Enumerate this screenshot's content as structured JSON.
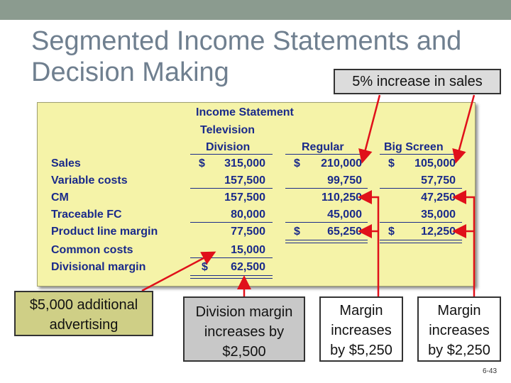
{
  "title_line1": "Segmented Income Statements and",
  "title_line2": "Decision Making",
  "callout_top": "5% increase in sales",
  "table": {
    "heading": "Income Statement",
    "col_division_1": "Television",
    "col_division_2": "Division",
    "col_regular": "Regular",
    "col_bigscreen": "Big Screen",
    "rows": [
      {
        "label": "Sales",
        "division": "315,000",
        "regular": "210,000",
        "bigscreen": "105,000"
      },
      {
        "label": "Variable costs",
        "division": "157,500",
        "regular": "99,750",
        "bigscreen": "57,750"
      },
      {
        "label": "CM",
        "division": "157,500",
        "regular": "110,250",
        "bigscreen": "47,250"
      },
      {
        "label": "Traceable FC",
        "division": "80,000",
        "regular": "45,000",
        "bigscreen": "35,000"
      },
      {
        "label": "Product line margin",
        "division": "77,500",
        "regular": "65,250",
        "bigscreen": "12,250"
      },
      {
        "label": "Common costs",
        "division": "15,000"
      },
      {
        "label": "Divisional margin",
        "division": "62,500"
      }
    ],
    "currency": "$"
  },
  "boxes": {
    "advertising_line1": "$5,000 additional",
    "advertising_line2": "advertising",
    "division_line1": "Division margin",
    "division_line2": "increases by",
    "division_line3": "$2,500",
    "regular_line1": "Margin",
    "regular_line2": "increases",
    "regular_line3": "by $5,250",
    "bigscreen_line1": "Margin",
    "bigscreen_line2": "increases",
    "bigscreen_line3": "by $2,250"
  },
  "page_number": "6-43",
  "colors": {
    "table_bg": "#f5f3a8",
    "table_text": "#1a2a8a",
    "arrow": "#e0101a",
    "title": "#6f7f8f"
  }
}
